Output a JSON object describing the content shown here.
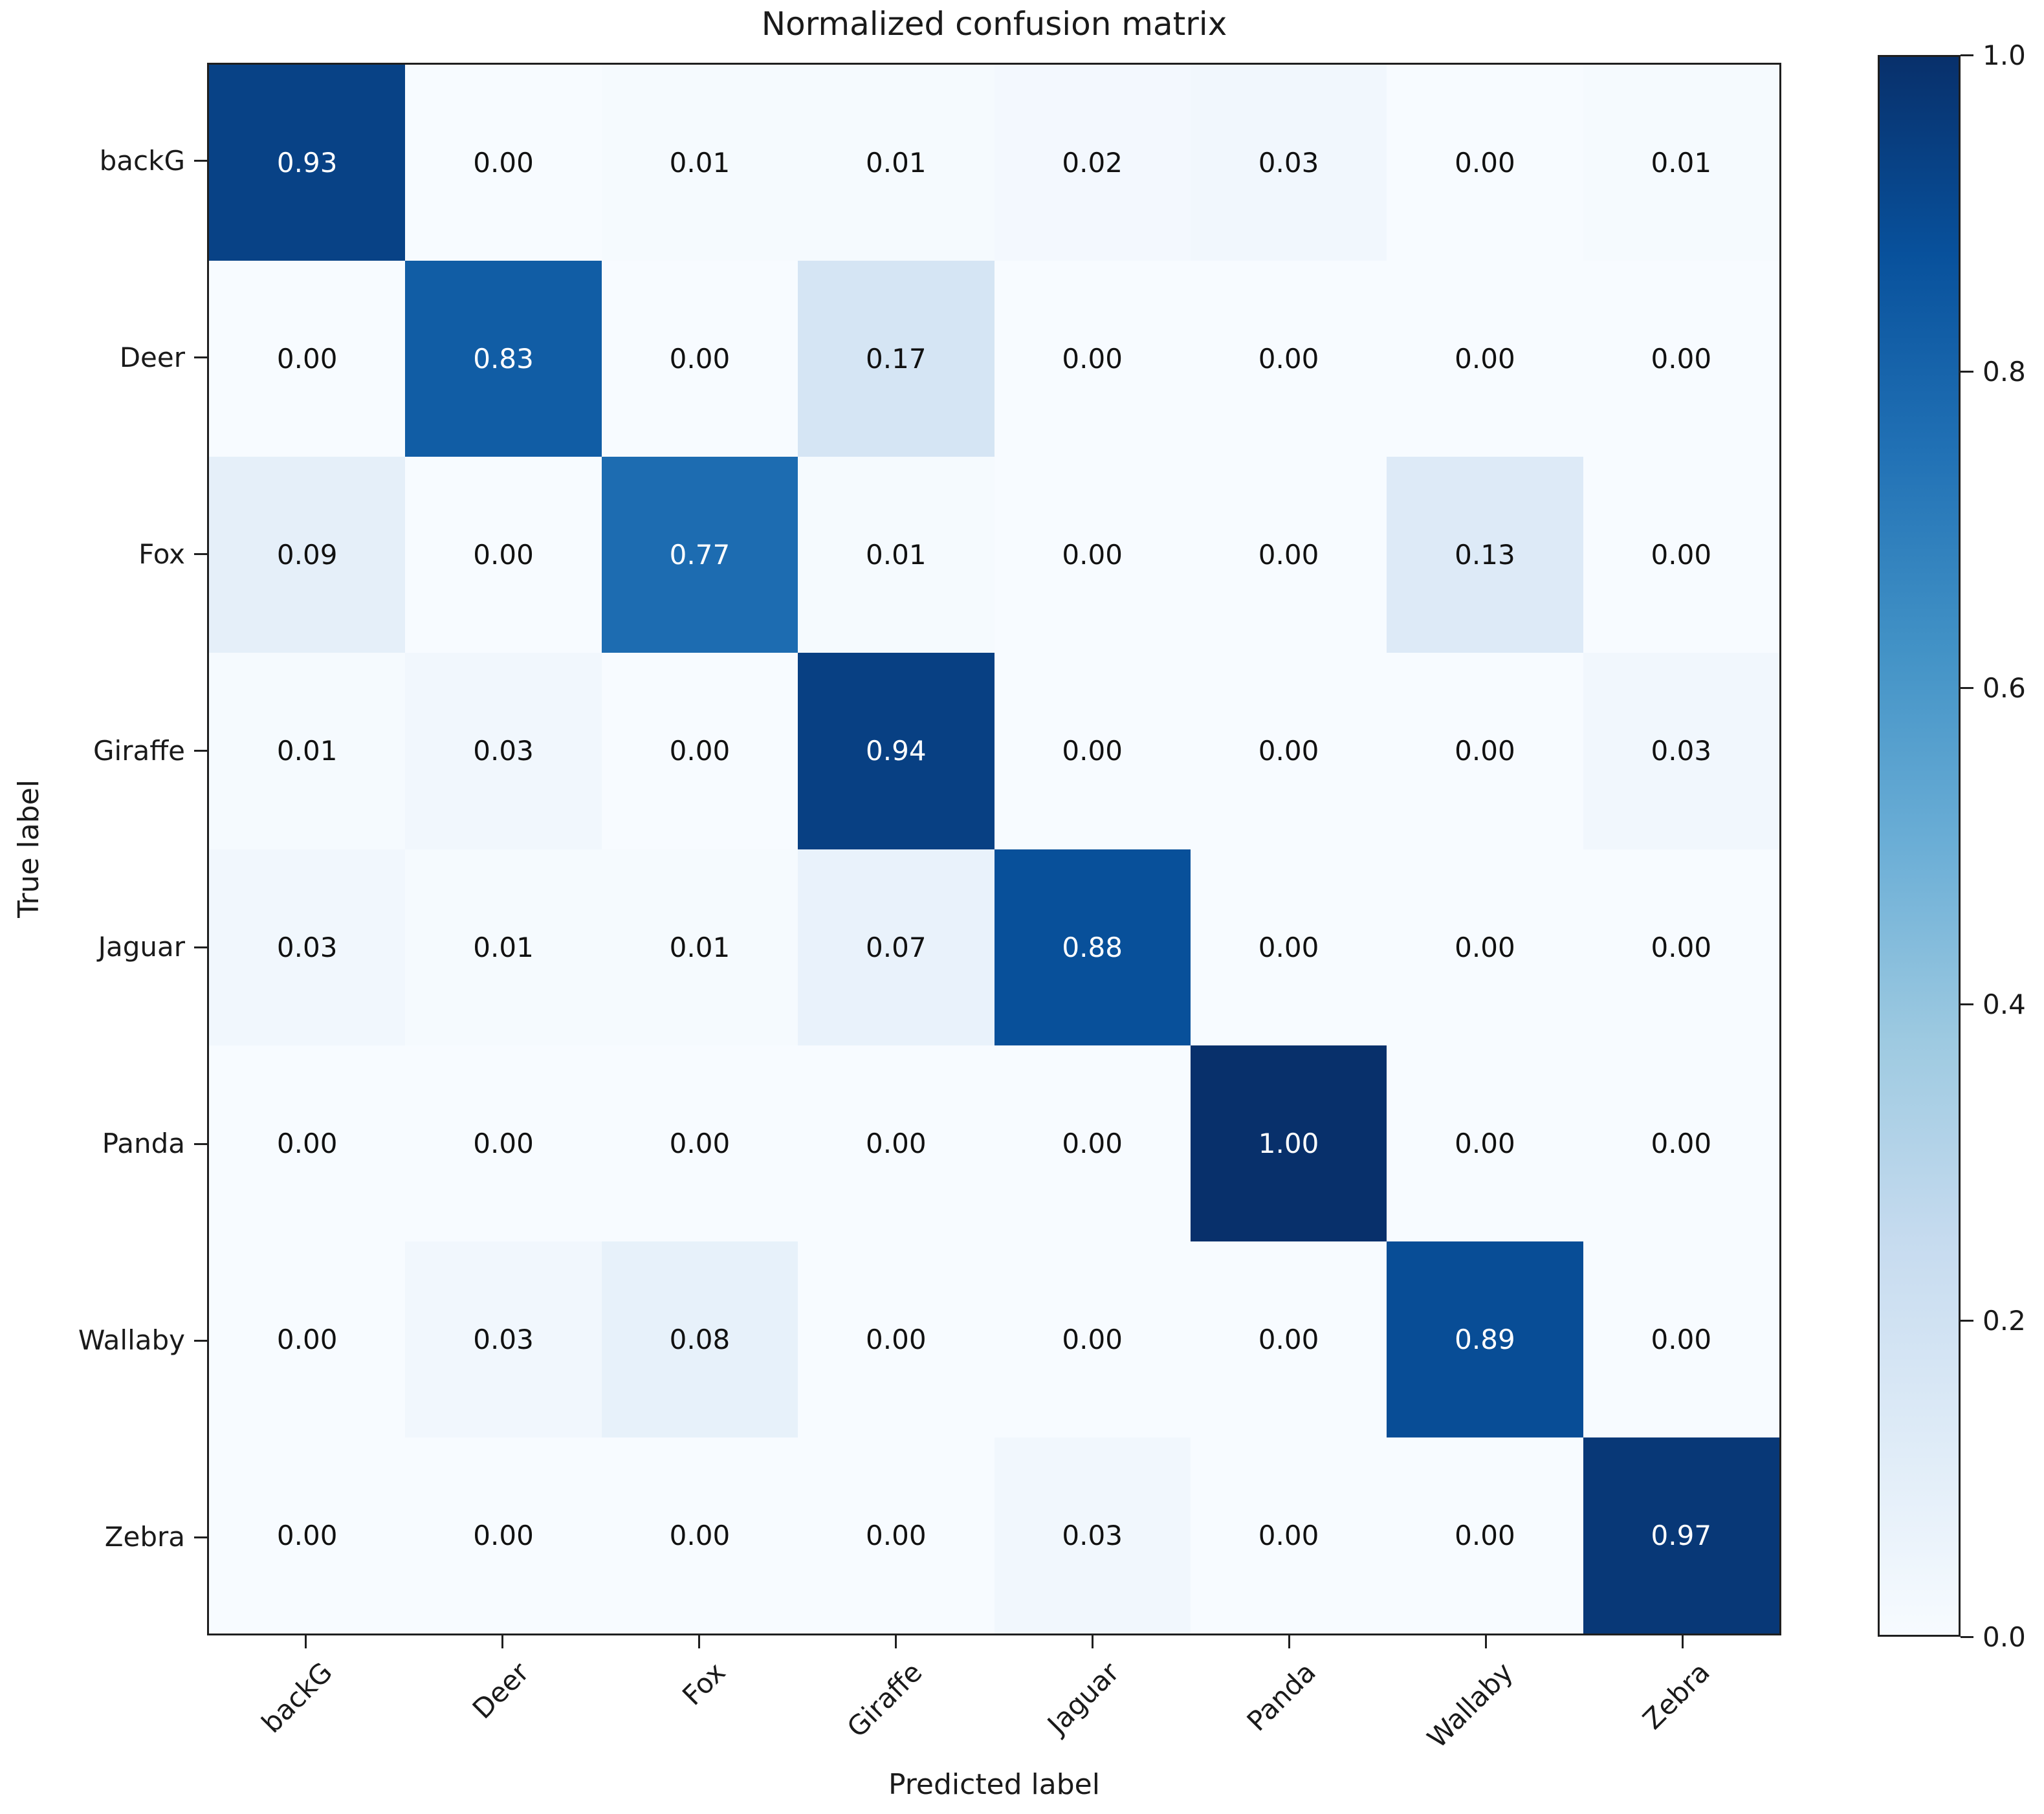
{
  "figure": {
    "background": "#ffffff"
  },
  "chart_data": {
    "type": "heatmap",
    "title": "Normalized confusion matrix",
    "xlabel": "Predicted label",
    "ylabel": "True label",
    "categories": [
      "backG",
      "Deer",
      "Fox",
      "Giraffe",
      "Jaguar",
      "Panda",
      "Wallaby",
      "Zebra"
    ],
    "matrix": [
      [
        0.93,
        0.0,
        0.01,
        0.01,
        0.02,
        0.03,
        0.0,
        0.01
      ],
      [
        0.0,
        0.83,
        0.0,
        0.17,
        0.0,
        0.0,
        0.0,
        0.0
      ],
      [
        0.09,
        0.0,
        0.77,
        0.01,
        0.0,
        0.0,
        0.13,
        0.0
      ],
      [
        0.01,
        0.03,
        0.0,
        0.94,
        0.0,
        0.0,
        0.0,
        0.03
      ],
      [
        0.03,
        0.01,
        0.01,
        0.07,
        0.88,
        0.0,
        0.0,
        0.0
      ],
      [
        0.0,
        0.0,
        0.0,
        0.0,
        0.0,
        1.0,
        0.0,
        0.0
      ],
      [
        0.0,
        0.03,
        0.08,
        0.0,
        0.0,
        0.0,
        0.89,
        0.0
      ],
      [
        0.0,
        0.0,
        0.0,
        0.0,
        0.03,
        0.0,
        0.0,
        0.97
      ]
    ],
    "value_decimals": 2,
    "vmin": 0.0,
    "vmax": 1.0,
    "text_threshold": 0.5,
    "text_color_light": "#ffffff",
    "text_color_dark": "#111111",
    "colormap": {
      "name": "Blues",
      "stops": [
        "#f7fbff",
        "#deebf7",
        "#c6dbef",
        "#9ecae1",
        "#6baed6",
        "#4292c6",
        "#2171b5",
        "#08519c",
        "#08306b"
      ]
    },
    "colorbar": {
      "tick_labels": [
        "1.0",
        "0.8",
        "0.6",
        "0.4",
        "0.2",
        "0.0"
      ],
      "tick_values": [
        1.0,
        0.8,
        0.6,
        0.4,
        0.2,
        0.0
      ],
      "position": "right"
    },
    "grid": false,
    "x_tick_rotation": 45
  }
}
